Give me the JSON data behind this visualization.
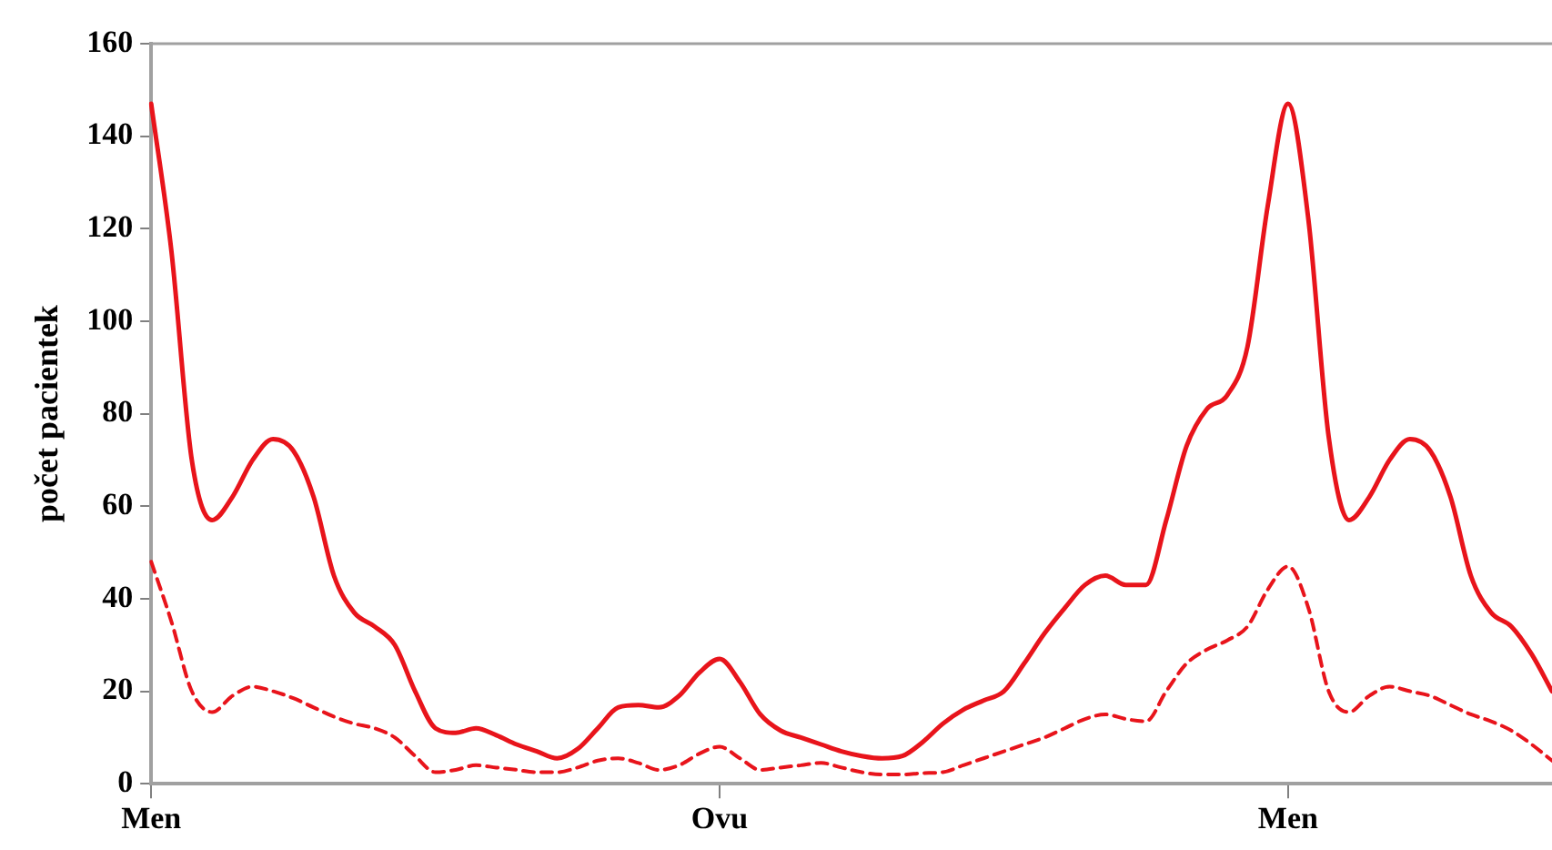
{
  "chart_data": {
    "type": "line",
    "ylabel": "počet pacientek",
    "categories": [
      "Men",
      null,
      null,
      null,
      null,
      null,
      null,
      null,
      null,
      null,
      null,
      null,
      null,
      null,
      null,
      null,
      null,
      null,
      null,
      null,
      null,
      null,
      null,
      null,
      null,
      null,
      null,
      null,
      "Ovu",
      null,
      null,
      null,
      null,
      null,
      null,
      null,
      null,
      null,
      null,
      null,
      null,
      null,
      null,
      null,
      null,
      null,
      null,
      null,
      null,
      null,
      null,
      null,
      null,
      null,
      null,
      null,
      "Men",
      null,
      null,
      null,
      null,
      null,
      null,
      null,
      null,
      null,
      null,
      null,
      null,
      null
    ],
    "ylim": [
      0,
      160
    ],
    "yticks": [
      0,
      20,
      40,
      60,
      80,
      100,
      120,
      140,
      160
    ],
    "grid": false,
    "legend": false,
    "marker": "none",
    "series": [
      {
        "color": "#e8141b",
        "line_style": "solid",
        "values": [
          147,
          115,
          70,
          57,
          62,
          70,
          74.5,
          72,
          62,
          45,
          37,
          34,
          30,
          20,
          12,
          11,
          12,
          10.5,
          8.5,
          7,
          5.5,
          7.5,
          12,
          16.5,
          17,
          16.5,
          19,
          24,
          27,
          22,
          15,
          11.5,
          10,
          8.5,
          7,
          6,
          5.5,
          6,
          9,
          13,
          16,
          18,
          20,
          26,
          32.5,
          38,
          43,
          45,
          43,
          43,
          57,
          73,
          81,
          84,
          94.5,
          125,
          147,
          122,
          75,
          57,
          62,
          70,
          74.5,
          72,
          62,
          45,
          37,
          34,
          28,
          20
        ]
      },
      {
        "color": "#e8141b",
        "line_style": "dashed",
        "values": [
          48,
          35,
          20,
          15.5,
          19,
          21,
          20,
          18.5,
          16.5,
          14.5,
          13,
          12,
          10,
          6,
          2.5,
          3,
          4,
          3.5,
          3,
          2.5,
          2.5,
          3.5,
          5,
          5.5,
          4.5,
          3,
          4,
          6.5,
          8,
          5.5,
          3,
          3.5,
          4,
          4.5,
          3.5,
          2.5,
          2,
          2,
          2.3,
          2.5,
          4,
          5.5,
          7,
          8.5,
          10,
          12,
          14,
          15,
          14,
          13.5,
          20,
          26,
          29,
          31,
          34,
          42,
          47,
          38,
          20,
          15.5,
          19,
          21,
          20,
          19,
          17,
          15,
          13.5,
          11.5,
          8.5,
          5
        ]
      }
    ]
  }
}
